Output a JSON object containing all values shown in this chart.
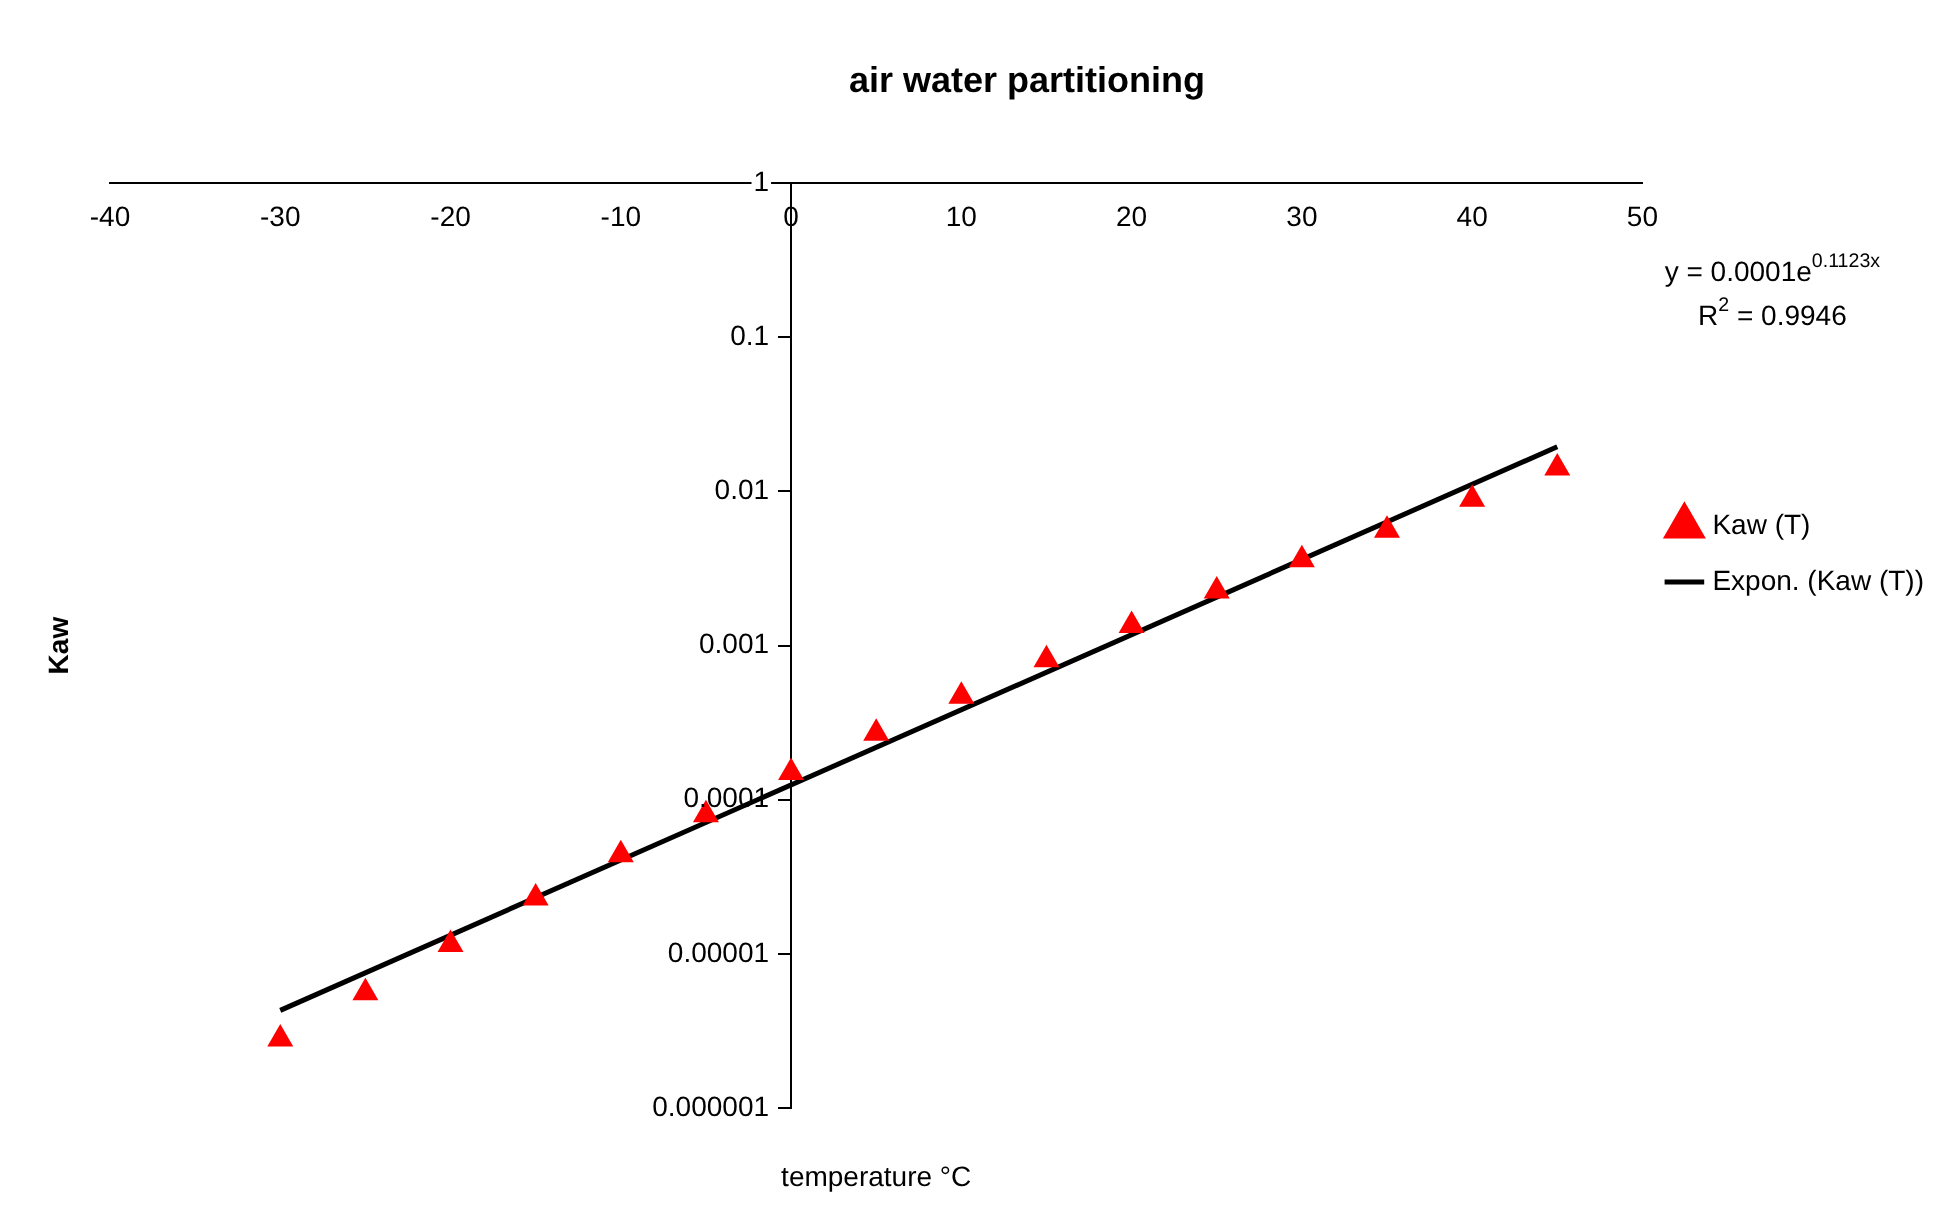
{
  "chart_data": {
    "type": "scatter",
    "title": "air water partitioning",
    "xlabel": "temperature °C",
    "ylabel": "Kaw",
    "log": "y",
    "xlim": [
      -40,
      50
    ],
    "xticks": [
      -40,
      -30,
      -20,
      -10,
      0,
      10,
      20,
      30,
      40,
      50
    ],
    "ylim": [
      1e-06,
      1
    ],
    "yticks": [
      {
        "value": 1e-06,
        "label": "0.000001"
      },
      {
        "value": 1e-05,
        "label": "0.00001"
      },
      0.0001,
      0.001,
      0.01,
      0.1,
      1
    ],
    "grid": false,
    "legend": "right",
    "annotations": [
      "y = 0.0001e$^{0.1123x}$",
      "R$^{2}$ = 0.9946"
    ],
    "series": [
      {
        "name": "Kaw (T)",
        "type": "scatter",
        "marker": "triangle",
        "color": "#ff0000",
        "x": [
          -30,
          -25,
          -20,
          -15,
          -10,
          -5,
          0,
          5,
          10,
          15,
          20,
          25,
          30,
          35,
          40,
          45
        ],
        "values": [
          2.8e-06,
          5.6e-06,
          1.15e-05,
          2.3e-05,
          4.4e-05,
          8e-05,
          0.00015,
          0.00027,
          0.00047,
          0.00081,
          0.00135,
          0.00226,
          0.0036,
          0.0056,
          0.0089,
          0.0142
        ]
      },
      {
        "name": "Expon. (Kaw (T))",
        "type": "line",
        "marker": "none",
        "line_style": "solid",
        "color": "#000000",
        "x": [
          -30,
          45
        ],
        "values": [
          4.3e-06,
          0.0195
        ]
      }
    ]
  }
}
